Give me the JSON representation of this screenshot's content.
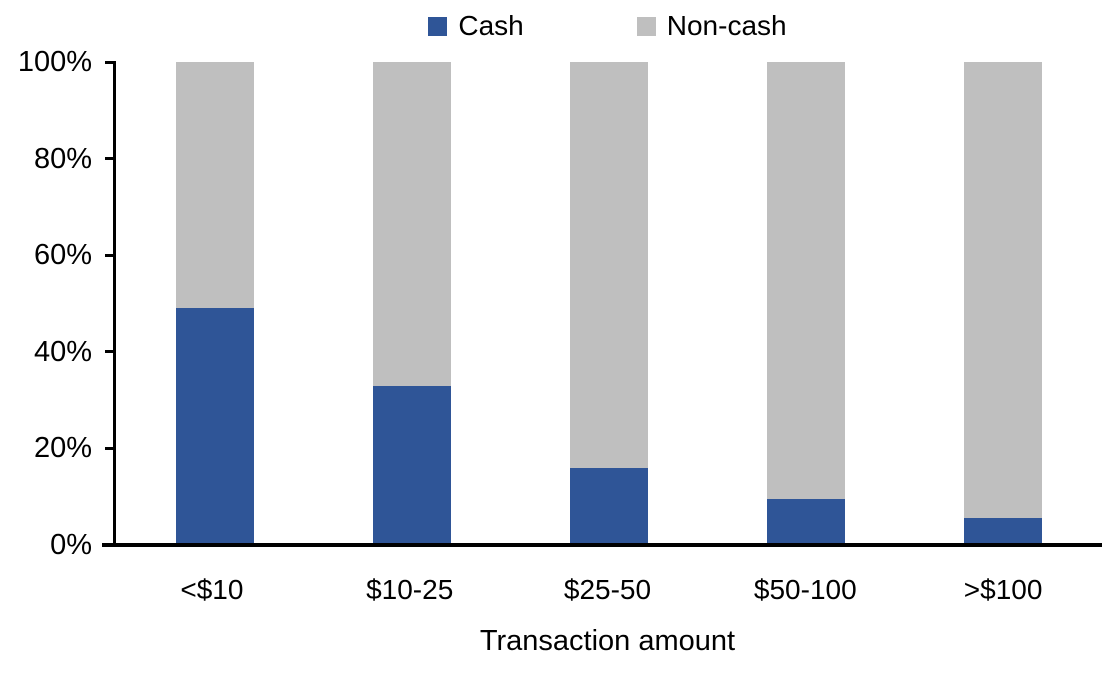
{
  "chart_data": {
    "type": "bar",
    "stacked": true,
    "percent_stacked": true,
    "title": "",
    "xlabel": "Transaction amount",
    "ylabel": "",
    "categories": [
      "<$10",
      "$10-25",
      "$25-50",
      "$50-100",
      ">$100"
    ],
    "series": [
      {
        "name": "Cash",
        "color": "#2F5597",
        "values": [
          49,
          33,
          16,
          9.5,
          5.5
        ]
      },
      {
        "name": "Non-cash",
        "color": "#BFBFBF",
        "values": [
          51,
          67,
          84,
          90.5,
          94.5
        ]
      }
    ],
    "y_ticks": [
      "0%",
      "20%",
      "40%",
      "60%",
      "80%",
      "100%"
    ],
    "ylim": [
      0,
      100
    ],
    "legend_position": "top-center",
    "grid": false
  },
  "colors": {
    "axis": "#000000",
    "text": "#000000",
    "background": "#FFFFFF",
    "cash": "#2F5597",
    "non_cash": "#BFBFBF"
  }
}
